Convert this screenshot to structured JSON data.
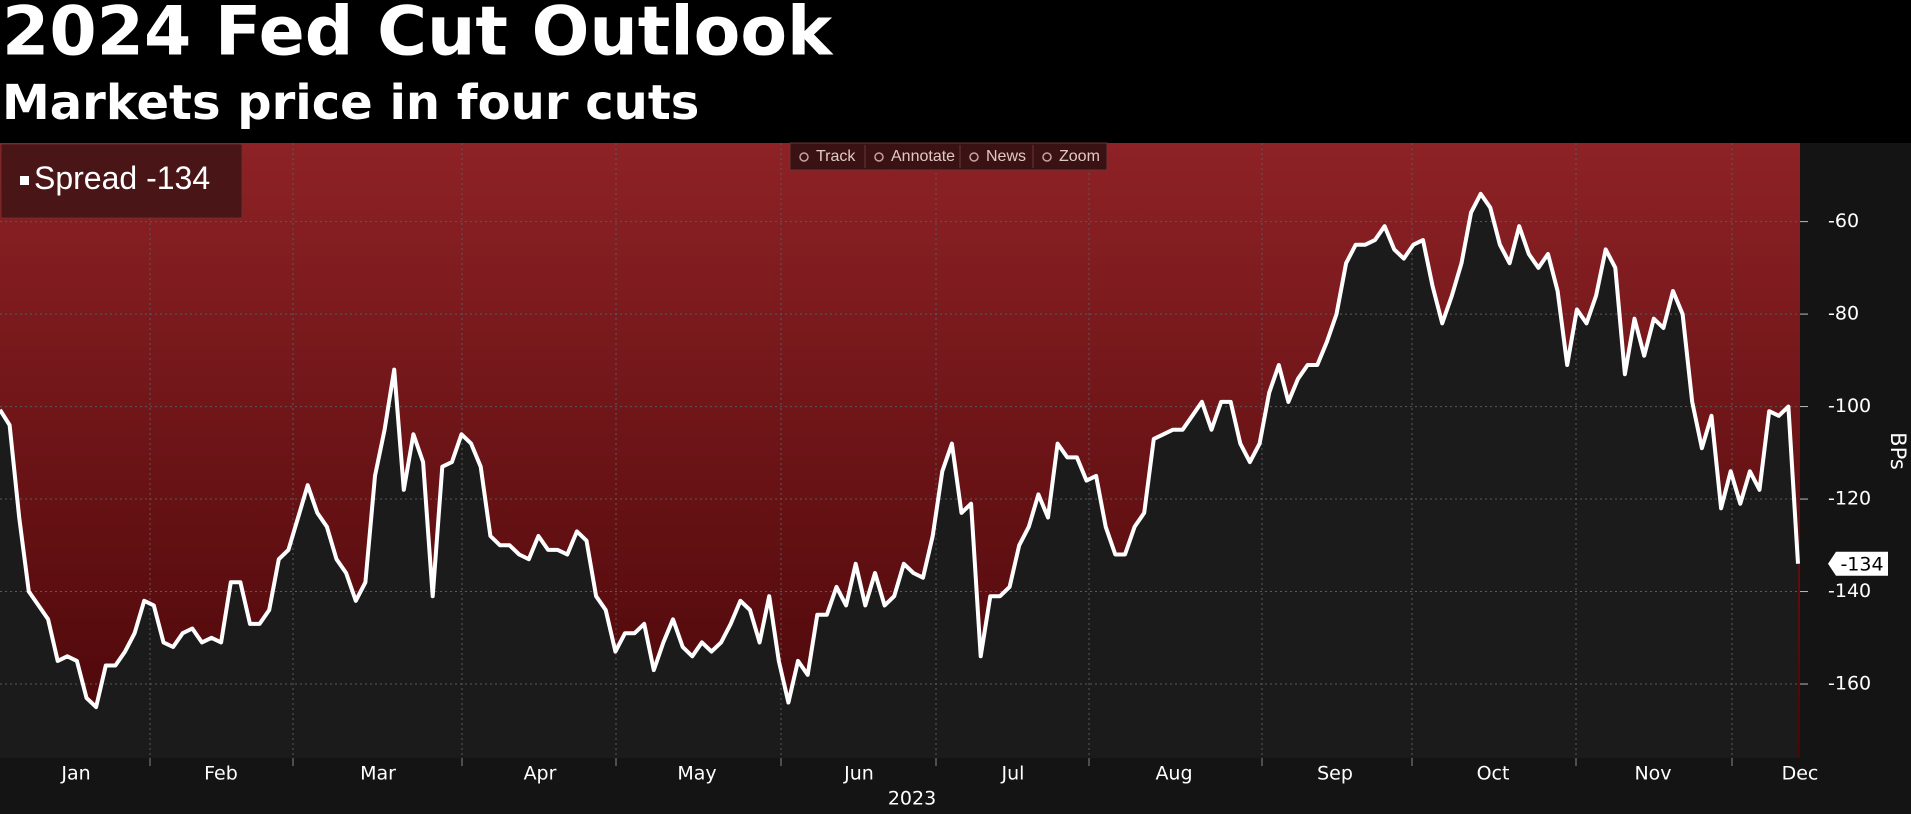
{
  "chart_data": {
    "type": "line",
    "title": "2024 Fed Cut Outlook",
    "subtitle": "Markets price in four cuts",
    "toolbar": [
      "Track",
      "Annotate",
      "News",
      "Zoom"
    ],
    "y_label": "BPs",
    "x_label": "2023",
    "months": [
      "Jan",
      "Feb",
      "Mar",
      "Apr",
      "May",
      "Jun",
      "Jul",
      "Aug",
      "Sep",
      "Oct",
      "Nov",
      "Dec"
    ],
    "ylim": [
      -176,
      -43
    ],
    "yticks": [
      -60,
      -80,
      -100,
      -120,
      -140,
      -160
    ],
    "grid": true,
    "series": [
      {
        "name": "Spread",
        "color": "#ffffff",
        "values": [
          -100.7,
          -104,
          -124,
          -140,
          -143,
          -146,
          -155,
          -154,
          -155,
          -163,
          -165,
          -156,
          -156,
          -153,
          -149,
          -142,
          -143,
          -151,
          -152,
          -149,
          -148,
          -151,
          -150,
          -151,
          -138,
          -138,
          -147,
          -147,
          -144,
          -133,
          -131,
          -124,
          -117,
          -123,
          -126,
          -133,
          -136,
          -142,
          -138,
          -115,
          -105,
          -92,
          -118,
          -106,
          -112,
          -141,
          -113,
          -112,
          -106,
          -108,
          -113,
          -128,
          -130,
          -130,
          -132,
          -133,
          -128,
          -131,
          -131,
          -132,
          -127,
          -129,
          -141,
          -144,
          -153,
          -149,
          -149,
          -147,
          -157,
          -151,
          -146,
          -152,
          -154,
          -151,
          -153,
          -151,
          -147,
          -142,
          -144,
          -151,
          -141,
          -155,
          -164,
          -155,
          -158,
          -145,
          -145,
          -139,
          -143,
          -134,
          -143,
          -136,
          -143,
          -141,
          -134,
          -136,
          -137,
          -128,
          -114,
          -108,
          -123,
          -121,
          -154,
          -141,
          -141,
          -139,
          -130,
          -126,
          -119,
          -124,
          -108,
          -111,
          -111,
          -116,
          -115,
          -126,
          -132,
          -132,
          -126,
          -123,
          -107,
          -106,
          -105,
          -105,
          -102,
          -99,
          -105,
          -99,
          -99,
          -108,
          -112,
          -108,
          -97,
          -91,
          -99,
          -94,
          -91,
          -91,
          -86,
          -80,
          -69,
          -65,
          -65,
          -64,
          -61,
          -66,
          -68,
          -65,
          -64,
          -74,
          -82,
          -76,
          -69,
          -58,
          -54,
          -57,
          -65,
          -69,
          -61,
          -67,
          -70,
          -67,
          -75,
          -91,
          -79,
          -82,
          -76,
          -66,
          -70,
          -93,
          -81,
          -89,
          -81,
          -83,
          -75,
          -80,
          -99,
          -109,
          -102,
          -122,
          -114,
          -121,
          -114,
          -118,
          -101,
          -102,
          -100,
          -134
        ]
      }
    ]
  }
}
